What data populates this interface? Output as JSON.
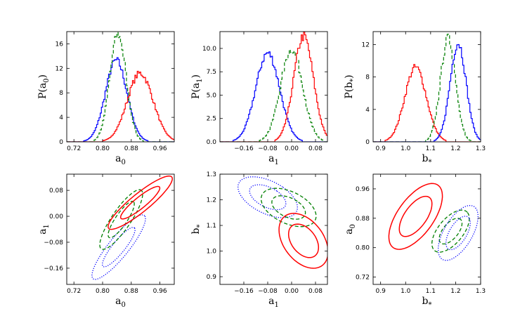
{
  "chart_data": [
    {
      "id": "p1",
      "type": "line",
      "xlabel": "a",
      "xlabel_sub": "0",
      "ylabel": "P(a",
      "ylabel_sub": "0",
      "ylabel_tail": ")",
      "xlim": [
        0.7,
        1.0
      ],
      "ylim": [
        0,
        18
      ],
      "xticks": [
        0.72,
        0.8,
        0.88,
        0.96
      ],
      "xtick_labels": [
        "0.72",
        "0.80",
        "0.88",
        "0.96"
      ],
      "yticks": [
        0,
        4,
        8,
        12,
        16
      ],
      "ytick_labels": [
        "0",
        "4",
        "8",
        "12",
        "16"
      ],
      "series": [
        {
          "name": "blue",
          "color": "#0000ff",
          "style": "solid",
          "mu": 0.838,
          "sigma": 0.03,
          "peak": 13.3
        },
        {
          "name": "green",
          "color": "#007f00",
          "style": "dashed",
          "mu": 0.843,
          "sigma": 0.023,
          "peak": 17.5
        },
        {
          "name": "red",
          "color": "#ff0000",
          "style": "solid",
          "mu": 0.905,
          "sigma": 0.036,
          "peak": 11.2
        }
      ]
    },
    {
      "id": "p2",
      "type": "line",
      "xlabel": "a",
      "xlabel_sub": "1",
      "ylabel": "P(a",
      "ylabel_sub": "1",
      "ylabel_tail": ")",
      "xlim": [
        -0.24,
        0.12
      ],
      "ylim": [
        0,
        11.8
      ],
      "xticks": [
        -0.16,
        -0.08,
        0.0,
        0.08
      ],
      "xtick_labels": [
        "−0.16",
        "−0.08",
        "0.00",
        "0.08"
      ],
      "yticks": [
        0,
        2.5,
        5.0,
        7.5,
        10.0
      ],
      "ytick_labels": [
        "0.0",
        "2.5",
        "5.0",
        "7.5",
        "10.0"
      ],
      "series": [
        {
          "name": "blue",
          "color": "#0000ff",
          "style": "solid",
          "mu": -0.08,
          "sigma": 0.04,
          "peak": 9.5
        },
        {
          "name": "green",
          "color": "#007f00",
          "style": "dashed",
          "mu": 0.0,
          "sigma": 0.037,
          "peak": 9.9
        },
        {
          "name": "red",
          "color": "#ff0000",
          "style": "solid",
          "mu": 0.04,
          "sigma": 0.033,
          "peak": 11.3
        }
      ]
    },
    {
      "id": "p3",
      "type": "line",
      "xlabel": "b",
      "xlabel_sub": "*",
      "ylabel": "P(b",
      "ylabel_sub": "*",
      "ylabel_tail": ")",
      "xlim": [
        0.87,
        1.3
      ],
      "ylim": [
        0,
        13.6
      ],
      "xticks": [
        0.9,
        1.0,
        1.1,
        1.2,
        1.3
      ],
      "xtick_labels": [
        "0.9",
        "1.0",
        "1.1",
        "1.2",
        "1.3"
      ],
      "yticks": [
        0,
        4,
        8,
        12
      ],
      "ytick_labels": [
        "0",
        "4",
        "8",
        "12"
      ],
      "series": [
        {
          "name": "red",
          "color": "#ff0000",
          "style": "solid",
          "mu": 1.04,
          "sigma": 0.043,
          "peak": 9.2
        },
        {
          "name": "green",
          "color": "#007f00",
          "style": "dashed",
          "mu": 1.17,
          "sigma": 0.03,
          "peak": 12.8
        },
        {
          "name": "blue",
          "color": "#0000ff",
          "style": "solid",
          "mu": 1.21,
          "sigma": 0.032,
          "peak": 12.2
        }
      ]
    },
    {
      "id": "p4",
      "type": "scatter",
      "xlabel": "a",
      "xlabel_sub": "0",
      "ylabel": "a",
      "ylabel_sub": "1",
      "ylabel_tail": "",
      "xlim": [
        0.7,
        1.0
      ],
      "ylim": [
        -0.21,
        0.13
      ],
      "xticks": [
        0.72,
        0.8,
        0.88,
        0.96
      ],
      "xtick_labels": [
        "0.72",
        "0.80",
        "0.88",
        "0.96"
      ],
      "yticks": [
        -0.16,
        -0.08,
        0.0,
        0.08
      ],
      "ytick_labels": [
        "−0.16",
        "−0.08",
        "0.00",
        "0.08"
      ],
      "contours": [
        {
          "name": "blue",
          "color": "#0000ff",
          "style": "dotted",
          "cx": 0.845,
          "cy": -0.095,
          "sx": 0.03,
          "sy": 0.04,
          "rho": 0.88
        },
        {
          "name": "green",
          "color": "#007f00",
          "style": "dashed",
          "cx": 0.852,
          "cy": -0.01,
          "sx": 0.024,
          "sy": 0.037,
          "rho": 0.85
        },
        {
          "name": "red",
          "color": "#ff0000",
          "style": "solid",
          "cx": 0.905,
          "cy": 0.042,
          "sx": 0.036,
          "sy": 0.033,
          "rho": 0.9
        }
      ]
    },
    {
      "id": "p5",
      "type": "scatter",
      "xlabel": "a",
      "xlabel_sub": "1",
      "ylabel": "b",
      "ylabel_sub": "*",
      "ylabel_tail": "",
      "xlim": [
        -0.24,
        0.12
      ],
      "ylim": [
        0.87,
        1.3
      ],
      "xticks": [
        -0.16,
        -0.08,
        0.0,
        0.08
      ],
      "xtick_labels": [
        "−0.16",
        "−0.08",
        "0.00",
        "0.08"
      ],
      "yticks": [
        0.9,
        1.0,
        1.1,
        1.2,
        1.3
      ],
      "ytick_labels": [
        "0.9",
        "1.0",
        "1.1",
        "1.2",
        "1.3"
      ],
      "contours": [
        {
          "name": "blue",
          "color": "#0000ff",
          "style": "dotted",
          "cx": -0.08,
          "cy": 1.21,
          "sx": 0.04,
          "sy": 0.032,
          "rho": -0.5
        },
        {
          "name": "green",
          "color": "#007f00",
          "style": "dashed",
          "cx": -0.01,
          "cy": 1.17,
          "sx": 0.037,
          "sy": 0.03,
          "rho": -0.45
        },
        {
          "name": "red",
          "color": "#ff0000",
          "style": "solid",
          "cx": 0.04,
          "cy": 1.04,
          "sx": 0.033,
          "sy": 0.043,
          "rho": -0.4
        }
      ]
    },
    {
      "id": "p6",
      "type": "scatter",
      "xlabel": "b",
      "xlabel_sub": "*",
      "ylabel": "a",
      "ylabel_sub": "0",
      "ylabel_tail": "",
      "xlim": [
        0.87,
        1.3
      ],
      "ylim": [
        0.7,
        1.0
      ],
      "xticks": [
        0.9,
        1.0,
        1.1,
        1.2,
        1.3
      ],
      "xtick_labels": [
        "0.9",
        "1.0",
        "1.1",
        "1.2",
        "1.3"
      ],
      "yticks": [
        0.72,
        0.8,
        0.88,
        0.96
      ],
      "ytick_labels": [
        "0.72",
        "0.80",
        "0.88",
        "0.96"
      ],
      "contours": [
        {
          "name": "red",
          "color": "#ff0000",
          "style": "solid",
          "cx": 1.04,
          "cy": 0.885,
          "sx": 0.043,
          "sy": 0.036,
          "rho": 0.62
        },
        {
          "name": "green",
          "color": "#007f00",
          "style": "dashed",
          "cx": 1.18,
          "cy": 0.845,
          "sx": 0.03,
          "sy": 0.023,
          "rho": 0.6
        },
        {
          "name": "blue",
          "color": "#0000ff",
          "style": "dotted",
          "cx": 1.21,
          "cy": 0.84,
          "sx": 0.032,
          "sy": 0.03,
          "rho": 0.6
        }
      ]
    }
  ]
}
